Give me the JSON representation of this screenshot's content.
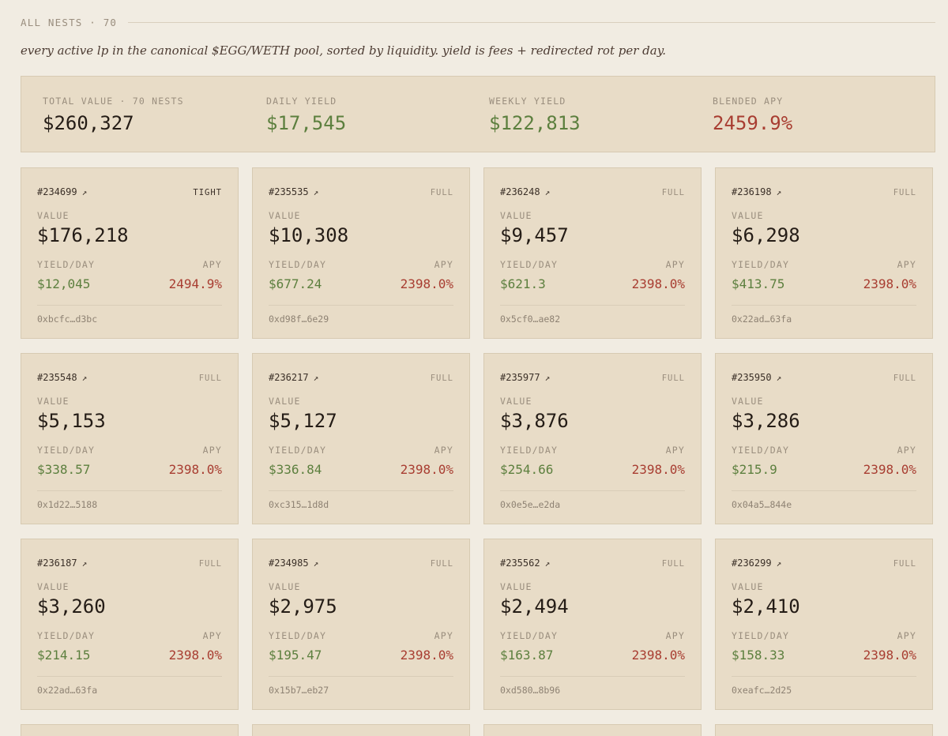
{
  "header": {
    "title": "ALL NESTS · 70",
    "subtitle": "every active lp in the canonical $EGG/WETH pool, sorted by liquidity. yield is fees + redirected rot per day."
  },
  "summary": {
    "total_value_label": "TOTAL VALUE · 70 NESTS",
    "total_value": "$260,327",
    "daily_yield_label": "DAILY YIELD",
    "daily_yield": "$17,545",
    "weekly_yield_label": "WEEKLY YIELD",
    "weekly_yield": "$122,813",
    "blended_apy_label": "BLENDED APY",
    "blended_apy": "2459.9%"
  },
  "labels": {
    "value": "VALUE",
    "yield_day": "YIELD/DAY",
    "apy": "APY",
    "arrow": "↗"
  },
  "colors": {
    "background": "#f1ece2",
    "card": "#e8dcc7",
    "green": "#5c7f3e",
    "red": "#a83d31"
  },
  "cards": [
    {
      "id": "#234699",
      "range": "TIGHT",
      "value": "$176,218",
      "yield": "$12,045",
      "apy": "2494.9%",
      "address": "0xbcfc…d3bc"
    },
    {
      "id": "#235535",
      "range": "FULL",
      "value": "$10,308",
      "yield": "$677.24",
      "apy": "2398.0%",
      "address": "0xd98f…6e29"
    },
    {
      "id": "#236248",
      "range": "FULL",
      "value": "$9,457",
      "yield": "$621.3",
      "apy": "2398.0%",
      "address": "0x5cf0…ae82"
    },
    {
      "id": "#236198",
      "range": "FULL",
      "value": "$6,298",
      "yield": "$413.75",
      "apy": "2398.0%",
      "address": "0x22ad…63fa"
    },
    {
      "id": "#235548",
      "range": "FULL",
      "value": "$5,153",
      "yield": "$338.57",
      "apy": "2398.0%",
      "address": "0x1d22…5188"
    },
    {
      "id": "#236217",
      "range": "FULL",
      "value": "$5,127",
      "yield": "$336.84",
      "apy": "2398.0%",
      "address": "0xc315…1d8d"
    },
    {
      "id": "#235977",
      "range": "FULL",
      "value": "$3,876",
      "yield": "$254.66",
      "apy": "2398.0%",
      "address": "0x0e5e…e2da"
    },
    {
      "id": "#235950",
      "range": "FULL",
      "value": "$3,286",
      "yield": "$215.9",
      "apy": "2398.0%",
      "address": "0x04a5…844e"
    },
    {
      "id": "#236187",
      "range": "FULL",
      "value": "$3,260",
      "yield": "$214.15",
      "apy": "2398.0%",
      "address": "0x22ad…63fa"
    },
    {
      "id": "#234985",
      "range": "FULL",
      "value": "$2,975",
      "yield": "$195.47",
      "apy": "2398.0%",
      "address": "0x15b7…eb27"
    },
    {
      "id": "#235562",
      "range": "FULL",
      "value": "$2,494",
      "yield": "$163.87",
      "apy": "2398.0%",
      "address": "0xd580…8b96"
    },
    {
      "id": "#236299",
      "range": "FULL",
      "value": "$2,410",
      "yield": "$158.33",
      "apy": "2398.0%",
      "address": "0xeafc…2d25"
    }
  ]
}
